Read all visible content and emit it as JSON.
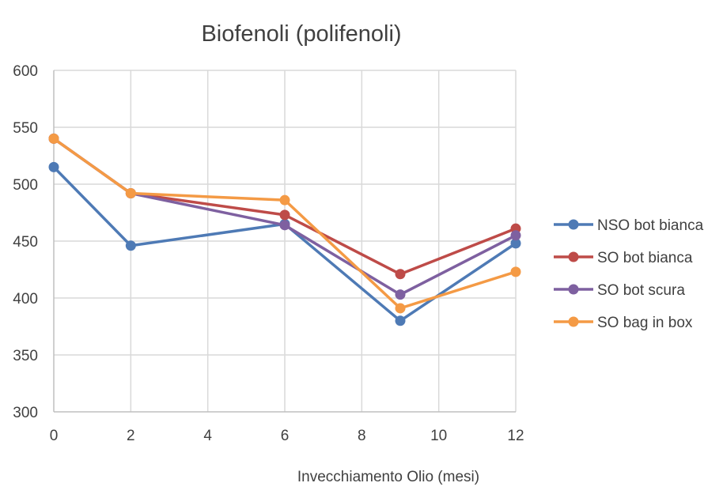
{
  "chart_data": {
    "type": "line",
    "title": "Biofenoli (polifenoli)",
    "xlabel": "Invecchiamento Olio (mesi)",
    "ylabel": "",
    "xlim": [
      0,
      12
    ],
    "ylim": [
      300,
      600
    ],
    "xticks": [
      0,
      2,
      4,
      6,
      8,
      10,
      12
    ],
    "yticks": [
      300,
      350,
      400,
      450,
      500,
      550,
      600
    ],
    "grid": true,
    "legend_position": "right",
    "x": [
      0,
      2,
      6,
      9,
      12
    ],
    "series": [
      {
        "name": "NSO bot bianca",
        "color": "#4e7ab5",
        "values": [
          515,
          446,
          465,
          380,
          448
        ]
      },
      {
        "name": "SO bot bianca",
        "color": "#be4b48",
        "values": [
          540,
          492,
          473,
          421,
          461
        ]
      },
      {
        "name": "SO bot scura",
        "color": "#7e60a0",
        "values": [
          540,
          492,
          464,
          403,
          455
        ]
      },
      {
        "name": "SO bag in box",
        "color": "#f49a45",
        "values": [
          540,
          492,
          486,
          391,
          423
        ]
      }
    ]
  }
}
